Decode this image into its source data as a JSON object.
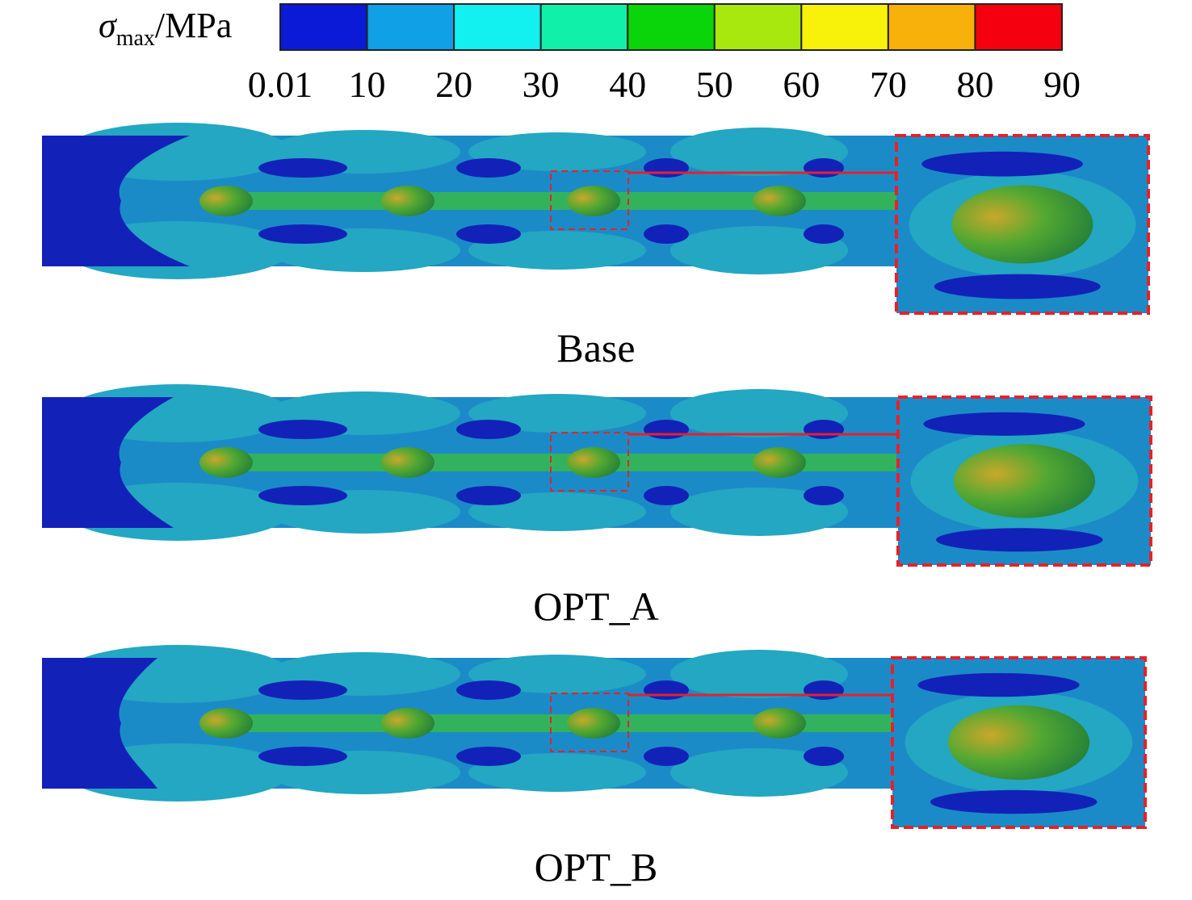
{
  "colorbar": {
    "title": {
      "symbol": "σ",
      "subscript": "max",
      "unit": "/MPa"
    },
    "ticks": [
      0.01,
      10,
      20,
      30,
      40,
      50,
      60,
      70,
      80,
      90
    ],
    "colors": [
      "#0a1ad6",
      "#0fa0e6",
      "#13f0f0",
      "#10f0a8",
      "#0ad40a",
      "#a8e80f",
      "#f8f20a",
      "#f8b00a",
      "#f5000f"
    ]
  },
  "panels": [
    {
      "label": "Base"
    },
    {
      "label": "OPT_A"
    },
    {
      "label": "OPT_B"
    }
  ]
}
